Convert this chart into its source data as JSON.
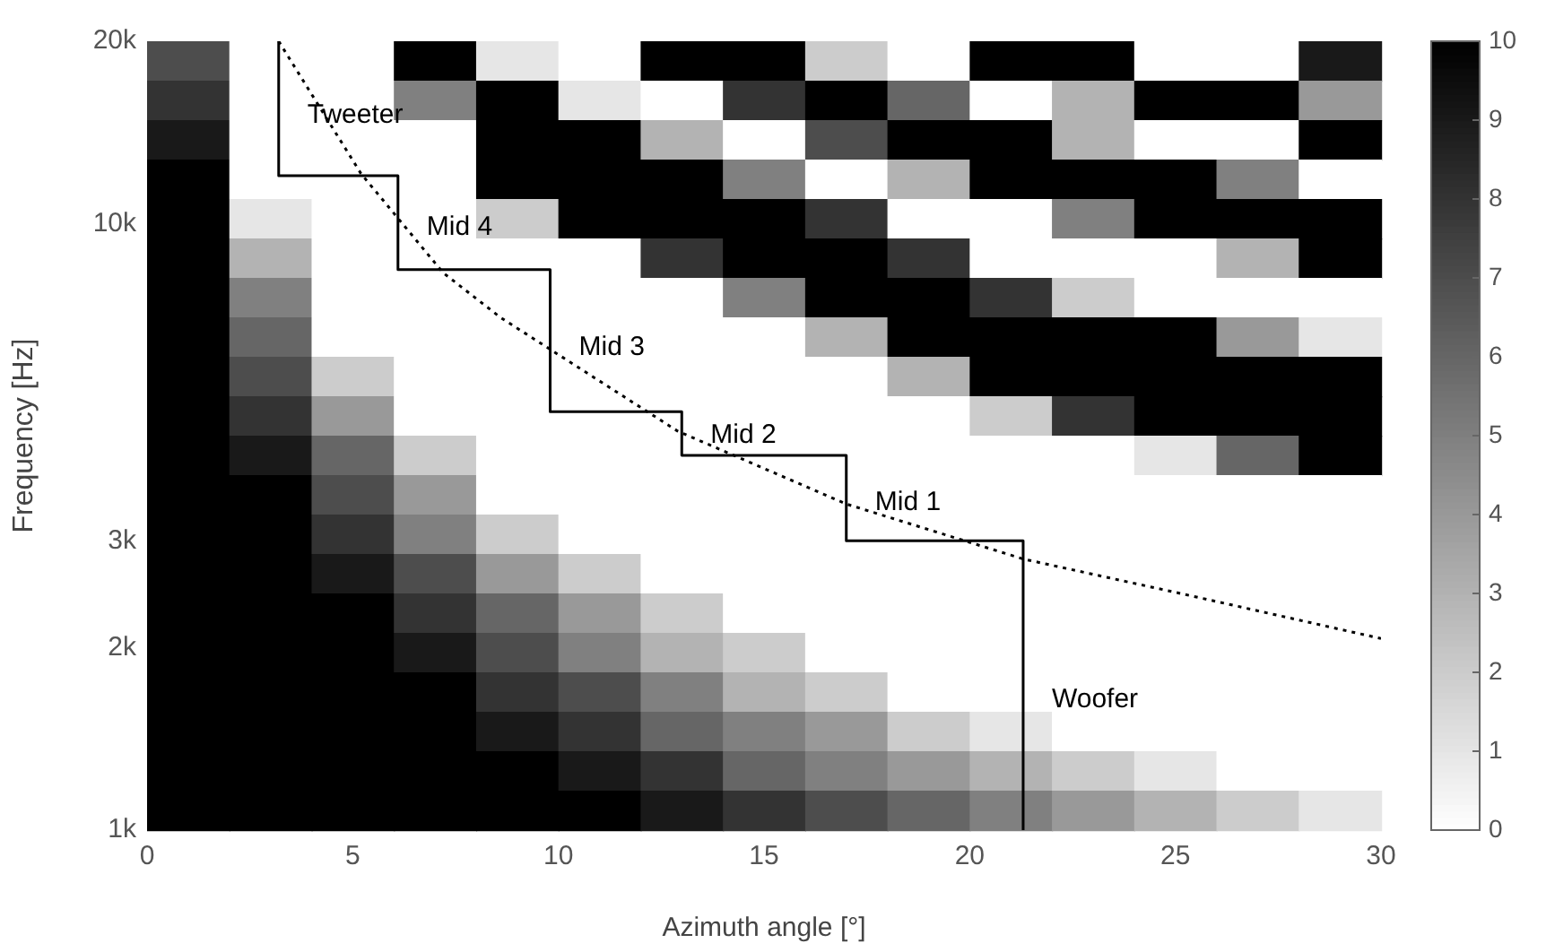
{
  "chart_data": {
    "type": "heatmap",
    "xlabel": "Azimuth angle [°]",
    "ylabel": "Frequency [Hz]",
    "xlim": [
      0,
      30
    ],
    "xticks": [
      0,
      5,
      10,
      15,
      20,
      25,
      30
    ],
    "ylim": [
      1000,
      20000
    ],
    "yticks": [
      {
        "value": 1000,
        "label": "1k"
      },
      {
        "value": 2000,
        "label": "2k"
      },
      {
        "value": 3000,
        "label": "3k"
      },
      {
        "value": 10000,
        "label": "10k"
      },
      {
        "value": 20000,
        "label": "20k"
      }
    ],
    "log": "y",
    "clim": [
      0,
      10
    ],
    "cticks": [
      0,
      1,
      2,
      3,
      4,
      5,
      6,
      7,
      8,
      9,
      10
    ],
    "cells": [
      [
        7,
        0,
        0,
        10,
        1,
        0,
        10,
        10,
        2,
        0,
        10,
        10,
        0,
        0,
        9
      ],
      [
        8,
        0,
        0,
        5,
        10,
        1,
        0,
        8,
        10,
        6,
        0,
        3,
        10,
        10,
        4
      ],
      [
        9,
        0,
        0,
        0,
        10,
        10,
        3,
        0,
        7,
        10,
        10,
        3,
        0,
        0,
        10
      ],
      [
        10,
        0,
        0,
        0,
        10,
        10,
        10,
        5,
        0,
        3,
        10,
        10,
        10,
        5,
        0
      ],
      [
        10,
        1,
        0,
        0,
        2,
        10,
        10,
        10,
        8,
        0,
        0,
        5,
        10,
        10,
        10
      ],
      [
        10,
        3,
        0,
        0,
        0,
        0,
        8,
        10,
        10,
        8,
        0,
        0,
        0,
        3,
        10
      ],
      [
        10,
        5,
        0,
        0,
        0,
        0,
        0,
        5,
        10,
        10,
        8,
        2,
        0,
        0,
        0
      ],
      [
        10,
        6,
        0,
        0,
        0,
        0,
        0,
        0,
        3,
        10,
        10,
        10,
        10,
        4,
        1
      ],
      [
        10,
        7,
        2,
        0,
        0,
        0,
        0,
        0,
        0,
        3,
        10,
        10,
        10,
        10,
        10
      ],
      [
        10,
        8,
        4,
        0,
        0,
        0,
        0,
        0,
        0,
        0,
        2,
        8,
        10,
        10,
        10
      ],
      [
        10,
        9,
        6,
        2,
        0,
        0,
        0,
        0,
        0,
        0,
        0,
        0,
        1,
        6,
        10
      ],
      [
        10,
        10,
        7,
        4,
        0,
        0,
        0,
        0,
        0,
        0,
        0,
        0,
        0,
        0,
        0
      ],
      [
        10,
        10,
        8,
        5,
        2,
        0,
        0,
        0,
        0,
        0,
        0,
        0,
        0,
        0,
        0
      ],
      [
        10,
        10,
        9,
        7,
        4,
        2,
        0,
        0,
        0,
        0,
        0,
        0,
        0,
        0,
        0
      ],
      [
        10,
        10,
        10,
        8,
        6,
        4,
        2,
        0,
        0,
        0,
        0,
        0,
        0,
        0,
        0
      ],
      [
        10,
        10,
        10,
        9,
        7,
        5,
        3,
        2,
        0,
        0,
        0,
        0,
        0,
        0,
        0
      ],
      [
        10,
        10,
        10,
        10,
        8,
        7,
        5,
        3,
        2,
        0,
        0,
        0,
        0,
        0,
        0
      ],
      [
        10,
        10,
        10,
        10,
        9,
        8,
        6,
        5,
        4,
        2,
        1,
        0,
        0,
        0,
        0
      ],
      [
        10,
        10,
        10,
        10,
        10,
        9,
        8,
        6,
        5,
        4,
        3,
        2,
        1,
        0,
        0
      ],
      [
        10,
        10,
        10,
        10,
        10,
        10,
        9,
        8,
        7,
        6,
        5,
        4,
        3,
        2,
        1
      ]
    ],
    "series": [
      {
        "type": "line",
        "color": "#000000",
        "line_style": "solid",
        "x": [
          3.2,
          3.2,
          6.1,
          6.1,
          9.8,
          9.8,
          13,
          13,
          17,
          17,
          21.3,
          21.3
        ],
        "values": [
          20000,
          12000,
          12000,
          8400,
          8400,
          4900,
          4900,
          4150,
          4150,
          3000,
          3000,
          1000
        ]
      },
      {
        "type": "line",
        "color": "#000000",
        "line_style": "dotted",
        "x": [
          3.2,
          5.2,
          7.2,
          8.6,
          12.9,
          17,
          21.3,
          25.2,
          30
        ],
        "values": [
          20000,
          12100,
          8300,
          7000,
          4550,
          3450,
          2800,
          2450,
          2070
        ]
      }
    ],
    "annotations": [
      "Tweeter",
      "Mid 4",
      "Mid 3",
      "Mid 2",
      "Mid 1",
      "Woofer"
    ]
  }
}
